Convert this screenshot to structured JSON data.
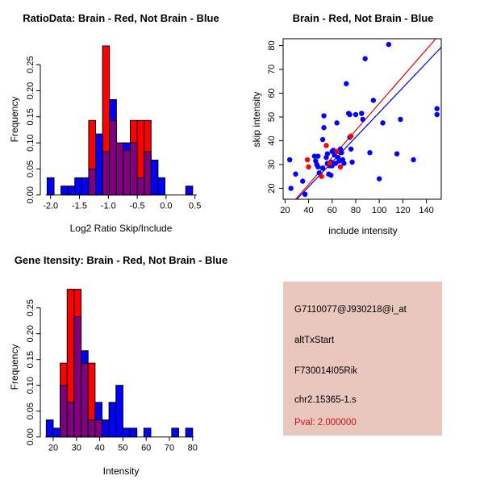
{
  "background": "#FFFFFF",
  "colors": {
    "brain_red": "#FF0000",
    "not_brain_blue": "#0000FF",
    "overlap_purple": "#7F007F",
    "fit_line_red": "#DD0000",
    "fit_line_blue": "#0000CD",
    "axis_black": "#000000",
    "info_panel_bg": "#E9C6BE",
    "pval_red": "#CC1111"
  },
  "chart_data": [
    {
      "id": "ratio_hist",
      "type": "bar",
      "subtype": "overlaid-histogram",
      "title": "RatioData: Brain - Red, Not Brain - Blue",
      "xlabel": "Log2 Ratio Skip/Include",
      "ylabel": "Frequency",
      "legend": [
        {
          "name": "Brain",
          "color": "#FF0000"
        },
        {
          "name": "Not Brain",
          "color": "#0000FF"
        }
      ],
      "xlim": [
        -2.1,
        0.55
      ],
      "ylim": [
        0,
        0.2857
      ],
      "grid": false,
      "x_ticks": [
        -2.0,
        -1.5,
        -1.0,
        -0.5,
        0.0,
        0.5
      ],
      "x_tick_labels": [
        "-2.0",
        "-1.5",
        "-1.0",
        "-0.5",
        "0.0",
        "0.5"
      ],
      "y_ticks": [
        0,
        0.05,
        0.1,
        0.15,
        0.2,
        0.25
      ],
      "y_tick_labels": [
        "0.00",
        "0.05",
        "0.10",
        "0.15",
        "0.20",
        "0.25"
      ],
      "bin_width": 0.12,
      "bins": [
        {
          "x0": -2.06,
          "blue": 0.033,
          "red": 0
        },
        {
          "x0": -1.82,
          "blue": 0.017,
          "red": 0
        },
        {
          "x0": -1.7,
          "blue": 0.017,
          "red": 0
        },
        {
          "x0": -1.58,
          "blue": 0.033,
          "red": 0
        },
        {
          "x0": -1.46,
          "blue": 0.033,
          "red": 0
        },
        {
          "x0": -1.34,
          "blue": 0.05,
          "red": 0.143
        },
        {
          "x0": -1.22,
          "blue": 0.117,
          "red": 0
        },
        {
          "x0": -1.1,
          "blue": 0.083,
          "red": 0.286
        },
        {
          "x0": -0.98,
          "blue": 0.183,
          "red": 0.143
        },
        {
          "x0": -0.86,
          "blue": 0.1,
          "red": 0.1
        },
        {
          "x0": -0.74,
          "blue": 0.1,
          "red": 0.086
        },
        {
          "x0": -0.62,
          "blue": 0.1,
          "red": 0.143
        },
        {
          "x0": -0.5,
          "blue": 0.033,
          "red": 0.143
        },
        {
          "x0": -0.38,
          "blue": 0.083,
          "red": 0.143
        },
        {
          "x0": -0.26,
          "blue": 0.067,
          "red": 0
        },
        {
          "x0": -0.14,
          "blue": 0.033,
          "red": 0
        },
        {
          "x0": 0.34,
          "blue": 0.017,
          "red": 0
        }
      ]
    },
    {
      "id": "scatter",
      "type": "scatter",
      "title": "Brain - Red, Not Brain - Blue",
      "xlabel": "include intensity",
      "ylabel": "skip intensity",
      "xlim": [
        18.4,
        152.6
      ],
      "ylim": [
        15.4,
        82.9
      ],
      "grid": false,
      "x_ticks": [
        20,
        40,
        60,
        80,
        100,
        120,
        140
      ],
      "x_tick_labels": [
        "20",
        "40",
        "60",
        "80",
        "100",
        "120",
        "140"
      ],
      "y_ticks": [
        20,
        30,
        40,
        50,
        60,
        70,
        80
      ],
      "y_tick_labels": [
        "20",
        "30",
        "40",
        "50",
        "60",
        "70",
        "80"
      ],
      "series": [
        {
          "name": "Not Brain",
          "color": "#0000FF",
          "points": [
            [
              24,
              32
            ],
            [
              25,
              20
            ],
            [
              29,
              26
            ],
            [
              35,
              23
            ],
            [
              37,
              17.5
            ],
            [
              45,
              33.5
            ],
            [
              46,
              31.5
            ],
            [
              47,
              30
            ],
            [
              48,
              33.5
            ],
            [
              48,
              29
            ],
            [
              49,
              26.5
            ],
            [
              52,
              28.5
            ],
            [
              52,
              40.5
            ],
            [
              53,
              50.5
            ],
            [
              53,
              45.5
            ],
            [
              55,
              33
            ],
            [
              56,
              34.5
            ],
            [
              56,
              30.5
            ],
            [
              57,
              26
            ],
            [
              58,
              29.5
            ],
            [
              59,
              31
            ],
            [
              59,
              25.5
            ],
            [
              60,
              29.5
            ],
            [
              60,
              35.5
            ],
            [
              61,
              36
            ],
            [
              62,
              34
            ],
            [
              63,
              30.5
            ],
            [
              64,
              47.5
            ],
            [
              65,
              35.5
            ],
            [
              65,
              33
            ],
            [
              66,
              31.5
            ],
            [
              67,
              36.5
            ],
            [
              68,
              35
            ],
            [
              69,
              32
            ],
            [
              70,
              30.5
            ],
            [
              72,
              64
            ],
            [
              74,
              51.5
            ],
            [
              75,
              51
            ],
            [
              75,
              41.5
            ],
            [
              76,
              36.5
            ],
            [
              77,
              31
            ],
            [
              80,
              51
            ],
            [
              85,
              51.5
            ],
            [
              86,
              49
            ],
            [
              88,
              74.5
            ],
            [
              92,
              35
            ],
            [
              95,
              57
            ],
            [
              100,
              24
            ],
            [
              103,
              47.5
            ],
            [
              108,
              80.5
            ],
            [
              115,
              34.5
            ],
            [
              118,
              49
            ],
            [
              129,
              32
            ],
            [
              149,
              53.5
            ],
            [
              149,
              51
            ]
          ]
        },
        {
          "name": "Brain",
          "color": "#FF0000",
          "points": [
            [
              39,
              32
            ],
            [
              40,
              29
            ],
            [
              51,
              25
            ],
            [
              55,
              38
            ],
            [
              58,
              30.5
            ],
            [
              64,
              35.5
            ],
            [
              67,
              29
            ],
            [
              76,
              42
            ]
          ]
        }
      ],
      "lines": [
        {
          "name": "brain-fit",
          "color": "#DD0000",
          "x1": 29,
          "y1": 15.4,
          "x2": 148,
          "y2": 82.9
        },
        {
          "name": "not-brain-fit",
          "color": "#0000CD",
          "x1": 30,
          "y1": 15.4,
          "x2": 152.6,
          "y2": 79.3
        }
      ]
    },
    {
      "id": "gene_hist",
      "type": "bar",
      "subtype": "overlaid-histogram",
      "title": "Gene Itensity: Brain - Red, Not Brain - Blue",
      "xlabel": "Intensity",
      "ylabel": "Frequency",
      "legend": [
        {
          "name": "Brain",
          "color": "#FF0000"
        },
        {
          "name": "Not Brain",
          "color": "#0000FF"
        }
      ],
      "xlim": [
        16,
        82
      ],
      "ylim": [
        0,
        0.2857
      ],
      "grid": false,
      "x_ticks": [
        20,
        30,
        40,
        50,
        60,
        70,
        80
      ],
      "x_tick_labels": [
        "20",
        "30",
        "40",
        "50",
        "60",
        "70",
        "80"
      ],
      "y_ticks": [
        0,
        0.05,
        0.1,
        0.15,
        0.2,
        0.25
      ],
      "y_tick_labels": [
        "0.00",
        "0.05",
        "0.10",
        "0.15",
        "0.20",
        "0.25"
      ],
      "bin_width": 3,
      "bins": [
        {
          "x0": 17,
          "blue": 0.033,
          "red": 0
        },
        {
          "x0": 20,
          "blue": 0.017,
          "red": 0
        },
        {
          "x0": 23,
          "blue": 0.1,
          "red": 0.143
        },
        {
          "x0": 26,
          "blue": 0.067,
          "red": 0.286
        },
        {
          "x0": 29,
          "blue": 0.233,
          "red": 0.286
        },
        {
          "x0": 32,
          "blue": 0.167,
          "red": 0.143
        },
        {
          "x0": 35,
          "blue": 0.033,
          "red": 0.143
        },
        {
          "x0": 38,
          "blue": 0.067,
          "red": 0.033
        },
        {
          "x0": 41,
          "blue": 0.033,
          "red": 0
        },
        {
          "x0": 44,
          "blue": 0.067,
          "red": 0
        },
        {
          "x0": 47,
          "blue": 0.1,
          "red": 0
        },
        {
          "x0": 50,
          "blue": 0.017,
          "red": 0
        },
        {
          "x0": 53,
          "blue": 0.017,
          "red": 0
        },
        {
          "x0": 59,
          "blue": 0.017,
          "red": 0
        },
        {
          "x0": 71,
          "blue": 0.017,
          "red": 0
        },
        {
          "x0": 77,
          "blue": 0.017,
          "red": 0
        }
      ]
    },
    {
      "id": "info",
      "type": "table",
      "bg": "#E9C6BE",
      "lines": [
        {
          "text": "G7110077@J930218@i_at",
          "color": "#000000"
        },
        {
          "text": "altTxStart",
          "color": "#000000"
        },
        {
          "text": "F730014I05Rik",
          "color": "#000000"
        },
        {
          "text": "chr2.15365-1.s",
          "color": "#000000"
        },
        {
          "text": "Pval: 2.000000",
          "color": "#CC1111"
        }
      ]
    }
  ]
}
